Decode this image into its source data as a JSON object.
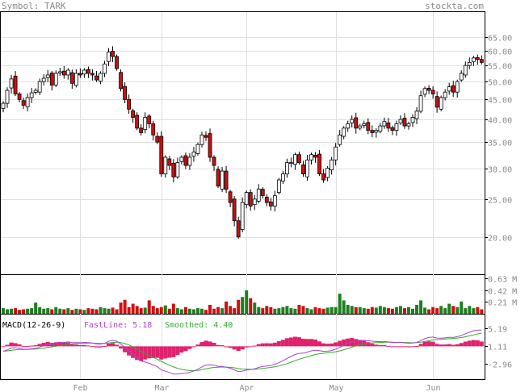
{
  "header": {
    "symbol_label": "Symbol: TARK",
    "site": "stockta.com"
  },
  "chart_data": {
    "type": "candlestick",
    "symbol": "TARK",
    "price_axis": {
      "scale": "log",
      "ticks": [
        65,
        60,
        55,
        50,
        45,
        40,
        35,
        30,
        25,
        20
      ],
      "tick_labels": [
        "65.00",
        "60.00",
        "55.00",
        "50.00",
        "45.00",
        "40.00",
        "35.00",
        "30.00",
        "25.00",
        "20.00"
      ],
      "range": [
        16.2,
        75
      ]
    },
    "volume_axis": {
      "ticks": [
        0.63,
        0.42,
        0.21
      ],
      "tick_labels": [
        "0.63 M",
        "0.42 M",
        "0.21 M"
      ],
      "max": 0.68
    },
    "macd_axis": {
      "ticks": [
        5.19,
        1.11,
        -2.96
      ],
      "tick_labels": [
        "5.19",
        "1.11",
        "-2.96"
      ],
      "range": [
        -6.2,
        8.0
      ]
    },
    "months": [
      "Feb",
      "Mar",
      "Apr",
      "May",
      "Jun"
    ],
    "month_start_index": [
      19,
      39,
      60,
      82,
      106
    ],
    "macd": {
      "title": "MACD(12-26-9)",
      "fast_label": "FastLine: 5.18",
      "smoothed_label": "Smoothed: 4.40",
      "colors": {
        "fast": "#aa44cc",
        "smoothed": "#33aa33",
        "hist": "#e0226e"
      }
    },
    "colors": {
      "up": "#ffffff",
      "down": "#cc1111",
      "vol_up": "#1f7f1f",
      "vol_down": "#cc1111",
      "grid": "#e0e0e0"
    },
    "close": [
      44.0,
      47.5,
      50.8,
      46.5,
      45.0,
      43.5,
      45.5,
      46.8,
      47.5,
      50.0,
      51.0,
      52.0,
      49.0,
      52.5,
      53.0,
      52.0,
      53.5,
      49.5,
      52.5,
      52.0,
      53.5,
      52.5,
      52.0,
      50.5,
      52.5,
      55.5,
      59.5,
      58.0,
      54.0,
      48.0,
      45.0,
      42.5,
      40.5,
      38.0,
      37.0,
      40.5,
      39.0,
      36.5,
      35.0,
      29.0,
      32.0,
      30.5,
      28.5,
      31.0,
      32.0,
      30.5,
      32.0,
      33.0,
      34.5,
      36.5,
      36.0,
      32.0,
      30.5,
      27.0,
      29.5,
      26.5,
      24.5,
      22.0,
      20.0,
      24.5,
      26.0,
      24.0,
      25.0,
      26.5,
      25.5,
      24.5,
      24.0,
      25.5,
      28.0,
      29.0,
      31.0,
      31.0,
      32.5,
      31.0,
      29.0,
      31.5,
      32.5,
      32.0,
      29.0,
      28.0,
      30.0,
      31.5,
      34.0,
      36.5,
      38.0,
      39.0,
      40.0,
      38.0,
      38.5,
      39.0,
      37.5,
      37.0,
      37.5,
      38.5,
      39.5,
      38.0,
      37.5,
      39.0,
      40.0,
      38.5,
      39.0,
      40.5,
      42.0,
      46.0,
      48.0,
      47.5,
      46.5,
      43.0,
      45.5,
      47.0,
      48.5,
      47.0,
      50.0,
      52.5,
      55.0,
      56.0,
      57.5,
      57.0,
      56.0
    ],
    "volume": [
      0.1,
      0.08,
      0.09,
      0.1,
      0.07,
      0.08,
      0.09,
      0.1,
      0.2,
      0.12,
      0.09,
      0.1,
      0.08,
      0.12,
      0.09,
      0.08,
      0.1,
      0.07,
      0.09,
      0.08,
      0.07,
      0.1,
      0.09,
      0.08,
      0.12,
      0.1,
      0.09,
      0.11,
      0.08,
      0.2,
      0.25,
      0.12,
      0.18,
      0.14,
      0.1,
      0.11,
      0.24,
      0.14,
      0.1,
      0.12,
      0.15,
      0.09,
      0.18,
      0.1,
      0.08,
      0.12,
      0.09,
      0.08,
      0.1,
      0.09,
      0.07,
      0.16,
      0.09,
      0.12,
      0.1,
      0.22,
      0.14,
      0.1,
      0.25,
      0.3,
      0.42,
      0.28,
      0.2,
      0.12,
      0.1,
      0.14,
      0.12,
      0.09,
      0.1,
      0.12,
      0.14,
      0.1,
      0.09,
      0.16,
      0.14,
      0.1,
      0.08,
      0.12,
      0.1,
      0.09,
      0.11,
      0.12,
      0.12,
      0.36,
      0.24,
      0.16,
      0.14,
      0.12,
      0.12,
      0.1,
      0.09,
      0.12,
      0.11,
      0.14,
      0.12,
      0.1,
      0.09,
      0.12,
      0.14,
      0.1,
      0.12,
      0.09,
      0.16,
      0.24,
      0.11,
      0.08,
      0.12,
      0.1,
      0.14,
      0.1,
      0.18,
      0.14,
      0.12,
      0.22,
      0.1,
      0.14,
      0.1,
      0.12,
      0.08
    ]
  }
}
